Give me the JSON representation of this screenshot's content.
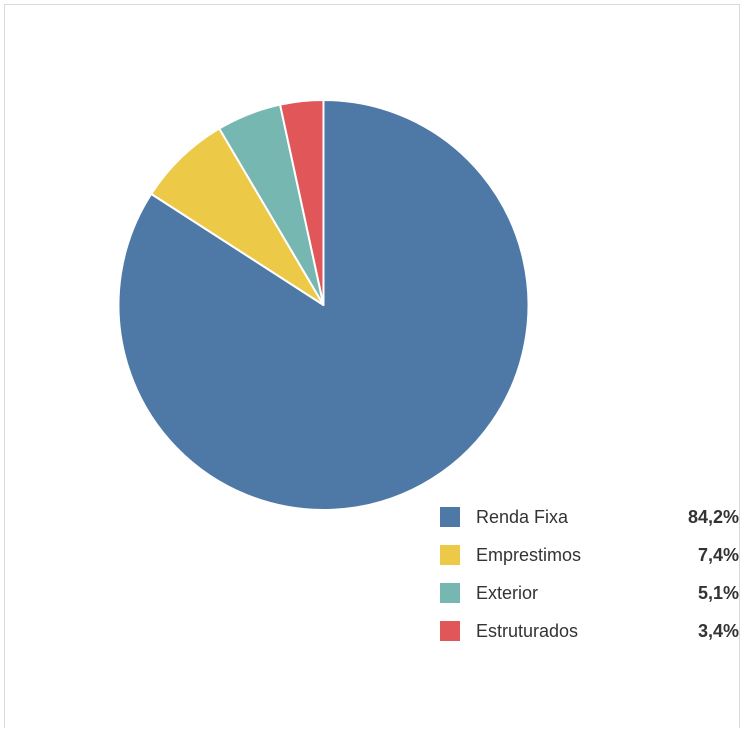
{
  "chart_data": {
    "type": "pie",
    "title": "",
    "start_angle": "12 o'clock",
    "direction": "clockwise",
    "slices": [
      {
        "label": "Renda Fixa",
        "value": 84.2,
        "value_label": "84,2%",
        "color": "#4e79a7"
      },
      {
        "label": "Emprestimos",
        "value": 7.4,
        "value_label": "7,4%",
        "color": "#edc948"
      },
      {
        "label": "Exterior",
        "value": 5.1,
        "value_label": "5,1%",
        "color": "#76b7b2"
      },
      {
        "label": "Estruturados",
        "value": 3.4,
        "value_label": "3,4%",
        "color": "#e15759"
      }
    ],
    "legend_position": "bottom-right"
  }
}
